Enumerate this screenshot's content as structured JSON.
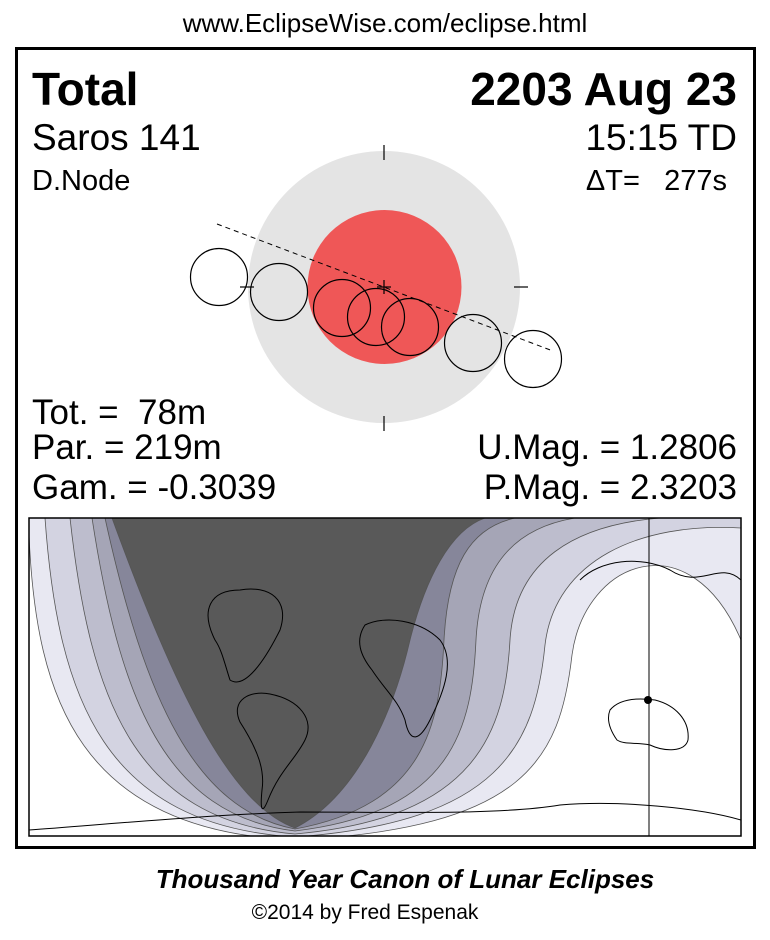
{
  "header": {
    "url": "www.EclipseWise.com/eclipse.html"
  },
  "eclipse": {
    "type": "Total",
    "date": "2203 Aug 23",
    "saros": "Saros 141",
    "time": "15:15 TD",
    "node": "D.Node",
    "delta_t": "ΔT=   277s",
    "totality": "Tot. =  78m",
    "partial": "Par. = 219m",
    "gamma": "Gam. = -0.3039",
    "umbral_mag": "U.Mag. = 1.2806",
    "penumbral_mag": "P.Mag. = 2.3203"
  },
  "diagram": {
    "colors": {
      "penumbra": "#e4e4e4",
      "umbra": "#ef5757",
      "moon_outline": "#000000"
    },
    "moon_positions": 7
  },
  "map": {
    "colors": {
      "night": "#595959",
      "band1": "#86869a",
      "band2": "#a5a5b6",
      "band3": "#bdbdcd",
      "band4": "#d3d3e1",
      "band5": "#e8e8f2",
      "day": "#ffffff"
    },
    "marker": "sub-lunar-point"
  },
  "footer": {
    "title": "Thousand Year Canon of Lunar Eclipses",
    "copyright": "©2014 by Fred Espenak"
  }
}
